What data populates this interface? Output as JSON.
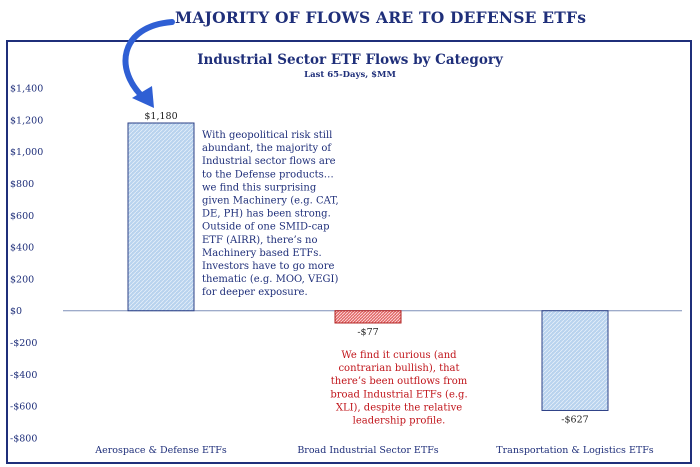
{
  "headline": "MAJORITY OF FLOWS ARE TO DEFENSE ETFs",
  "colors": {
    "navy": "#1f2f7a",
    "bar_fill": "#b9d3ee",
    "bar_stroke": "#2b3f86",
    "negative_fill": "#e46a6a",
    "negative_stroke": "#b02020",
    "red_text": "#c0141a",
    "arrow": "#2f5fd4"
  },
  "chart_data": {
    "type": "bar",
    "title": "Industrial Sector ETF Flows by Category",
    "subtitle": "Last 65-Days, $MM",
    "categories": [
      "Aerospace & Defense ETFs",
      "Broad Industrial Sector ETFs",
      "Transportation & Logistics ETFs"
    ],
    "values": [
      1180,
      -77,
      -627
    ],
    "data_labels": [
      "$1,180",
      "-$77",
      "-$627"
    ],
    "ylim": [
      -800,
      1400
    ],
    "yticks": [
      1400,
      1200,
      1000,
      800,
      600,
      400,
      200,
      0,
      -200,
      -400,
      -600,
      -800
    ],
    "ytick_labels": [
      "$1,400",
      "$1,200",
      "$1,000",
      "$800",
      "$600",
      "$400",
      "$200",
      "$0",
      "-$200",
      "-$400",
      "-$600",
      "-$800"
    ],
    "grid": false,
    "legend": "none"
  },
  "annotations": {
    "defense_note": [
      "With geopolitical risk still",
      "abundant, the majority of",
      "Industrial sector flows are",
      "to the Defense products…",
      "we find this surprising",
      "given Machinery (e.g. CAT,",
      "DE, PH) has been strong.",
      "Outside of one SMID-cap",
      "ETF (AIRR), there’s no",
      "Machinery based ETFs.",
      "Investors have to go more",
      "thematic (e.g. MOO, VEGI)",
      "for deeper exposure."
    ],
    "broad_note": [
      "We find it curious (and",
      "contrarian bullish), that",
      "there’s been outflows from",
      "broad Industrial ETFs (e.g.",
      "XLI), despite the relative",
      "leadership profile."
    ]
  }
}
